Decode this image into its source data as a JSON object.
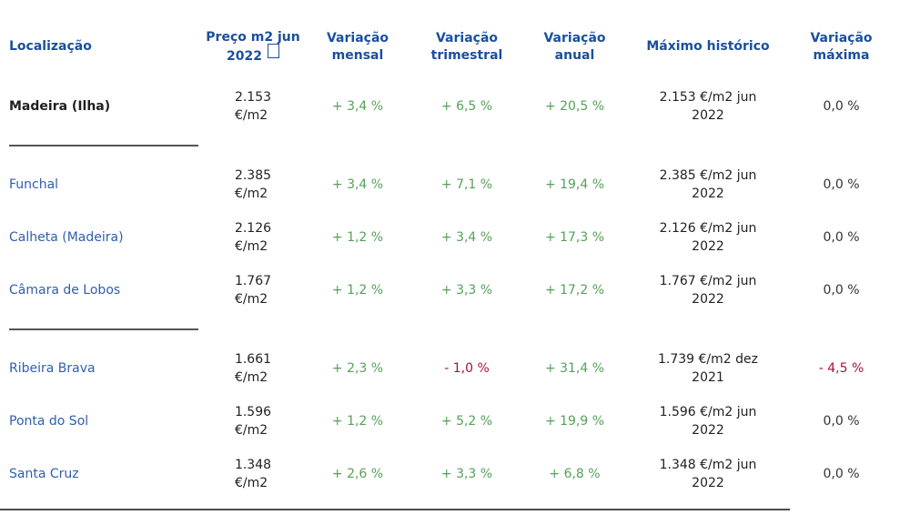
{
  "palette": {
    "header_blue": "#1a4f9e",
    "link_blue": "#2f5fae",
    "positive_green": "#57a05a",
    "negative_red": "#a8123c",
    "text_black": "#222222"
  },
  "columns": {
    "location": "Localização",
    "price": "Preço m2 jun 2022",
    "monthly": "Variação mensal",
    "quarterly": "Variação trimestral",
    "annual": "Variação anual",
    "max": "Máximo histórico",
    "max_variation": "Variação máxima"
  },
  "rows": [
    {
      "location": "Madeira (Ilha)",
      "emphasis": "loc-strong",
      "price_amount": "2.153",
      "price_unit": "€/m2",
      "monthly": "+ 3,4 %",
      "monthly_trend": "up",
      "quarterly": "+ 6,5 %",
      "quarterly_trend": "up",
      "annual": "+ 20,5 %",
      "annual_trend": "up",
      "max": "2.153 €/m2 jun 2022",
      "max_variation": "0,0 %",
      "max_variation_trend": "flat"
    },
    {
      "location": "Funchal",
      "emphasis": "loc-link",
      "price_amount": "2.385",
      "price_unit": "€/m2",
      "monthly": "+ 3,4 %",
      "monthly_trend": "up",
      "quarterly": "+ 7,1 %",
      "quarterly_trend": "up",
      "annual": "+ 19,4 %",
      "annual_trend": "up",
      "max": "2.385 €/m2 jun 2022",
      "max_variation": "0,0 %",
      "max_variation_trend": "flat"
    },
    {
      "location": "Calheta (Madeira)",
      "emphasis": "loc-link",
      "price_amount": "2.126",
      "price_unit": "€/m2",
      "monthly": "+ 1,2 %",
      "monthly_trend": "up",
      "quarterly": "+ 3,4 %",
      "quarterly_trend": "up",
      "annual": "+ 17,3 %",
      "annual_trend": "up",
      "max": "2.126 €/m2 jun 2022",
      "max_variation": "0,0 %",
      "max_variation_trend": "flat"
    },
    {
      "location": "Câmara de Lobos",
      "emphasis": "loc-link",
      "price_amount": "1.767",
      "price_unit": "€/m2",
      "monthly": "+ 1,2 %",
      "monthly_trend": "up",
      "quarterly": "+ 3,3 %",
      "quarterly_trend": "up",
      "annual": "+ 17,2 %",
      "annual_trend": "up",
      "max": "1.767 €/m2 jun 2022",
      "max_variation": "0,0 %",
      "max_variation_trend": "flat"
    },
    {
      "location": "Ribeira Brava",
      "emphasis": "loc-link",
      "price_amount": "1.661",
      "price_unit": "€/m2",
      "monthly": "+ 2,3 %",
      "monthly_trend": "up",
      "quarterly": "- 1,0 %",
      "quarterly_trend": "down",
      "annual": "+ 31,4 %",
      "annual_trend": "up",
      "max": "1.739 €/m2 dez 2021",
      "max_variation": "- 4,5 %",
      "max_variation_trend": "down"
    },
    {
      "location": "Ponta do Sol",
      "emphasis": "loc-link",
      "price_amount": "1.596",
      "price_unit": "€/m2",
      "monthly": "+ 1,2 %",
      "monthly_trend": "up",
      "quarterly": "+ 5,2 %",
      "quarterly_trend": "up",
      "annual": "+ 19,9 %",
      "annual_trend": "up",
      "max": "1.596 €/m2 jun 2022",
      "max_variation": "0,0 %",
      "max_variation_trend": "flat"
    },
    {
      "location": "Santa Cruz",
      "emphasis": "loc-link",
      "price_amount": "1.348",
      "price_unit": "€/m2",
      "monthly": "+ 2,6 %",
      "monthly_trend": "up",
      "quarterly": "+ 3,3 %",
      "quarterly_trend": "up",
      "annual": "+ 6,8 %",
      "annual_trend": "up",
      "max": "1.348 €/m2 jun 2022",
      "max_variation": "0,0 %",
      "max_variation_trend": "flat"
    }
  ]
}
